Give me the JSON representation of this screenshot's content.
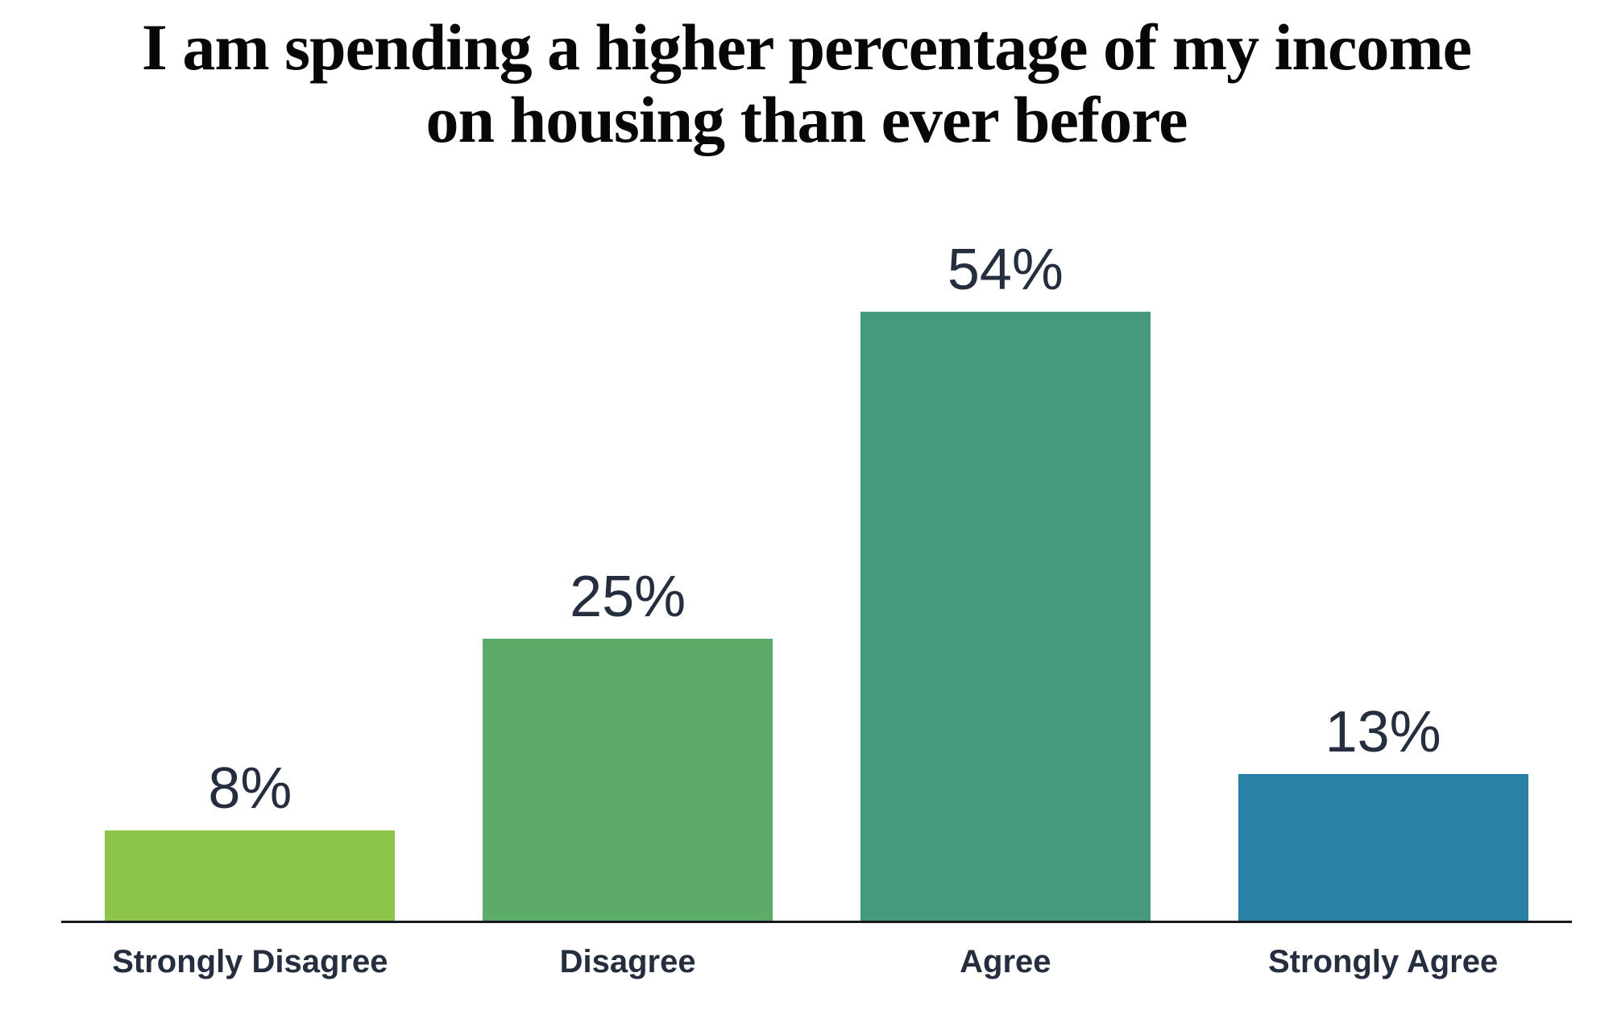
{
  "title": "I am spending a higher percentage of my income\non housing than ever before",
  "colors": {
    "background": "#FFFFFF",
    "title_text": "#060708",
    "label_text": "#242E3F",
    "axis_line": "#16191F"
  },
  "chart_data": {
    "type": "bar",
    "title": "I am spending a higher percentage of my income on housing than ever before",
    "categories": [
      "Strongly Disagree",
      "Disagree",
      "Agree",
      "Strongly Agree"
    ],
    "values": [
      8,
      25,
      54,
      13
    ],
    "value_labels": [
      "8%",
      "25%",
      "54%",
      "13%"
    ],
    "bar_colors": [
      "#8CC54A",
      "#5CAB68",
      "#45997F",
      "#2A81A6"
    ],
    "xlabel": "",
    "ylabel": "",
    "ylim": [
      0,
      60
    ],
    "grid": false,
    "legend": "none",
    "data_labels": "above-bars",
    "y_axis_shown": false
  }
}
